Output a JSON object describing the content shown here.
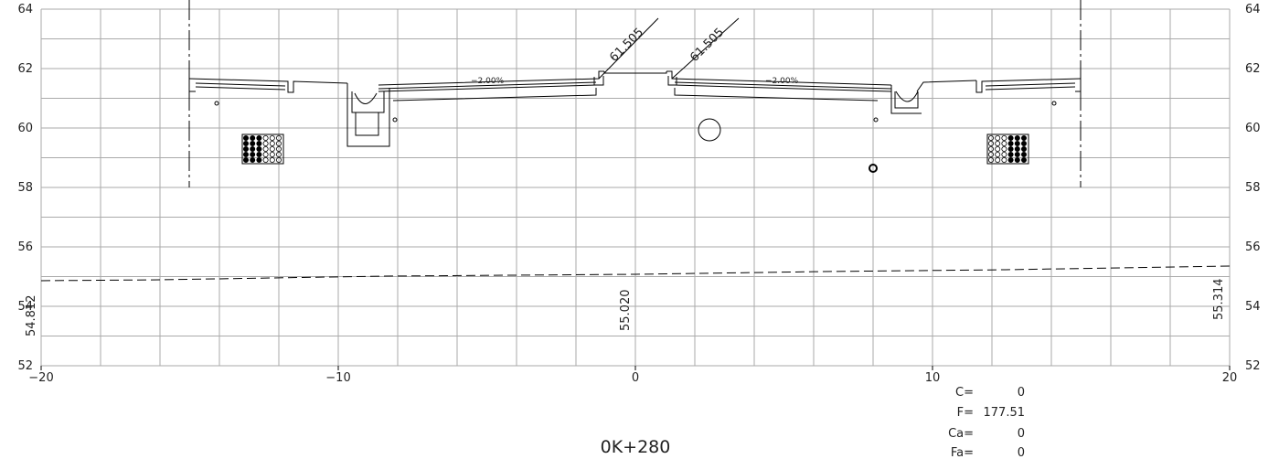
{
  "section": {
    "station": "0K+280",
    "axes": {
      "x": {
        "min": -20,
        "max": 20,
        "labels": [
          "−20",
          "−10",
          "0",
          "10",
          "20"
        ]
      },
      "y": {
        "min": 52,
        "max": 64,
        "labels": [
          "64",
          "62",
          "60",
          "58",
          "56",
          "54",
          "52"
        ]
      }
    },
    "ground_elevations": [
      {
        "x": -20,
        "value": "54.812"
      },
      {
        "x": 0,
        "value": "55.020"
      },
      {
        "x": 20,
        "value": "55.314"
      }
    ],
    "crown_elevations": [
      "61.505",
      "61.505"
    ],
    "slopes": [
      "−2.00%",
      "−2.00%"
    ],
    "results": [
      {
        "key": "C=",
        "value": "0"
      },
      {
        "key": "F=",
        "value": "177.51"
      },
      {
        "key": "Ca=",
        "value": "0"
      },
      {
        "key": "Fa=",
        "value": "0"
      }
    ]
  }
}
